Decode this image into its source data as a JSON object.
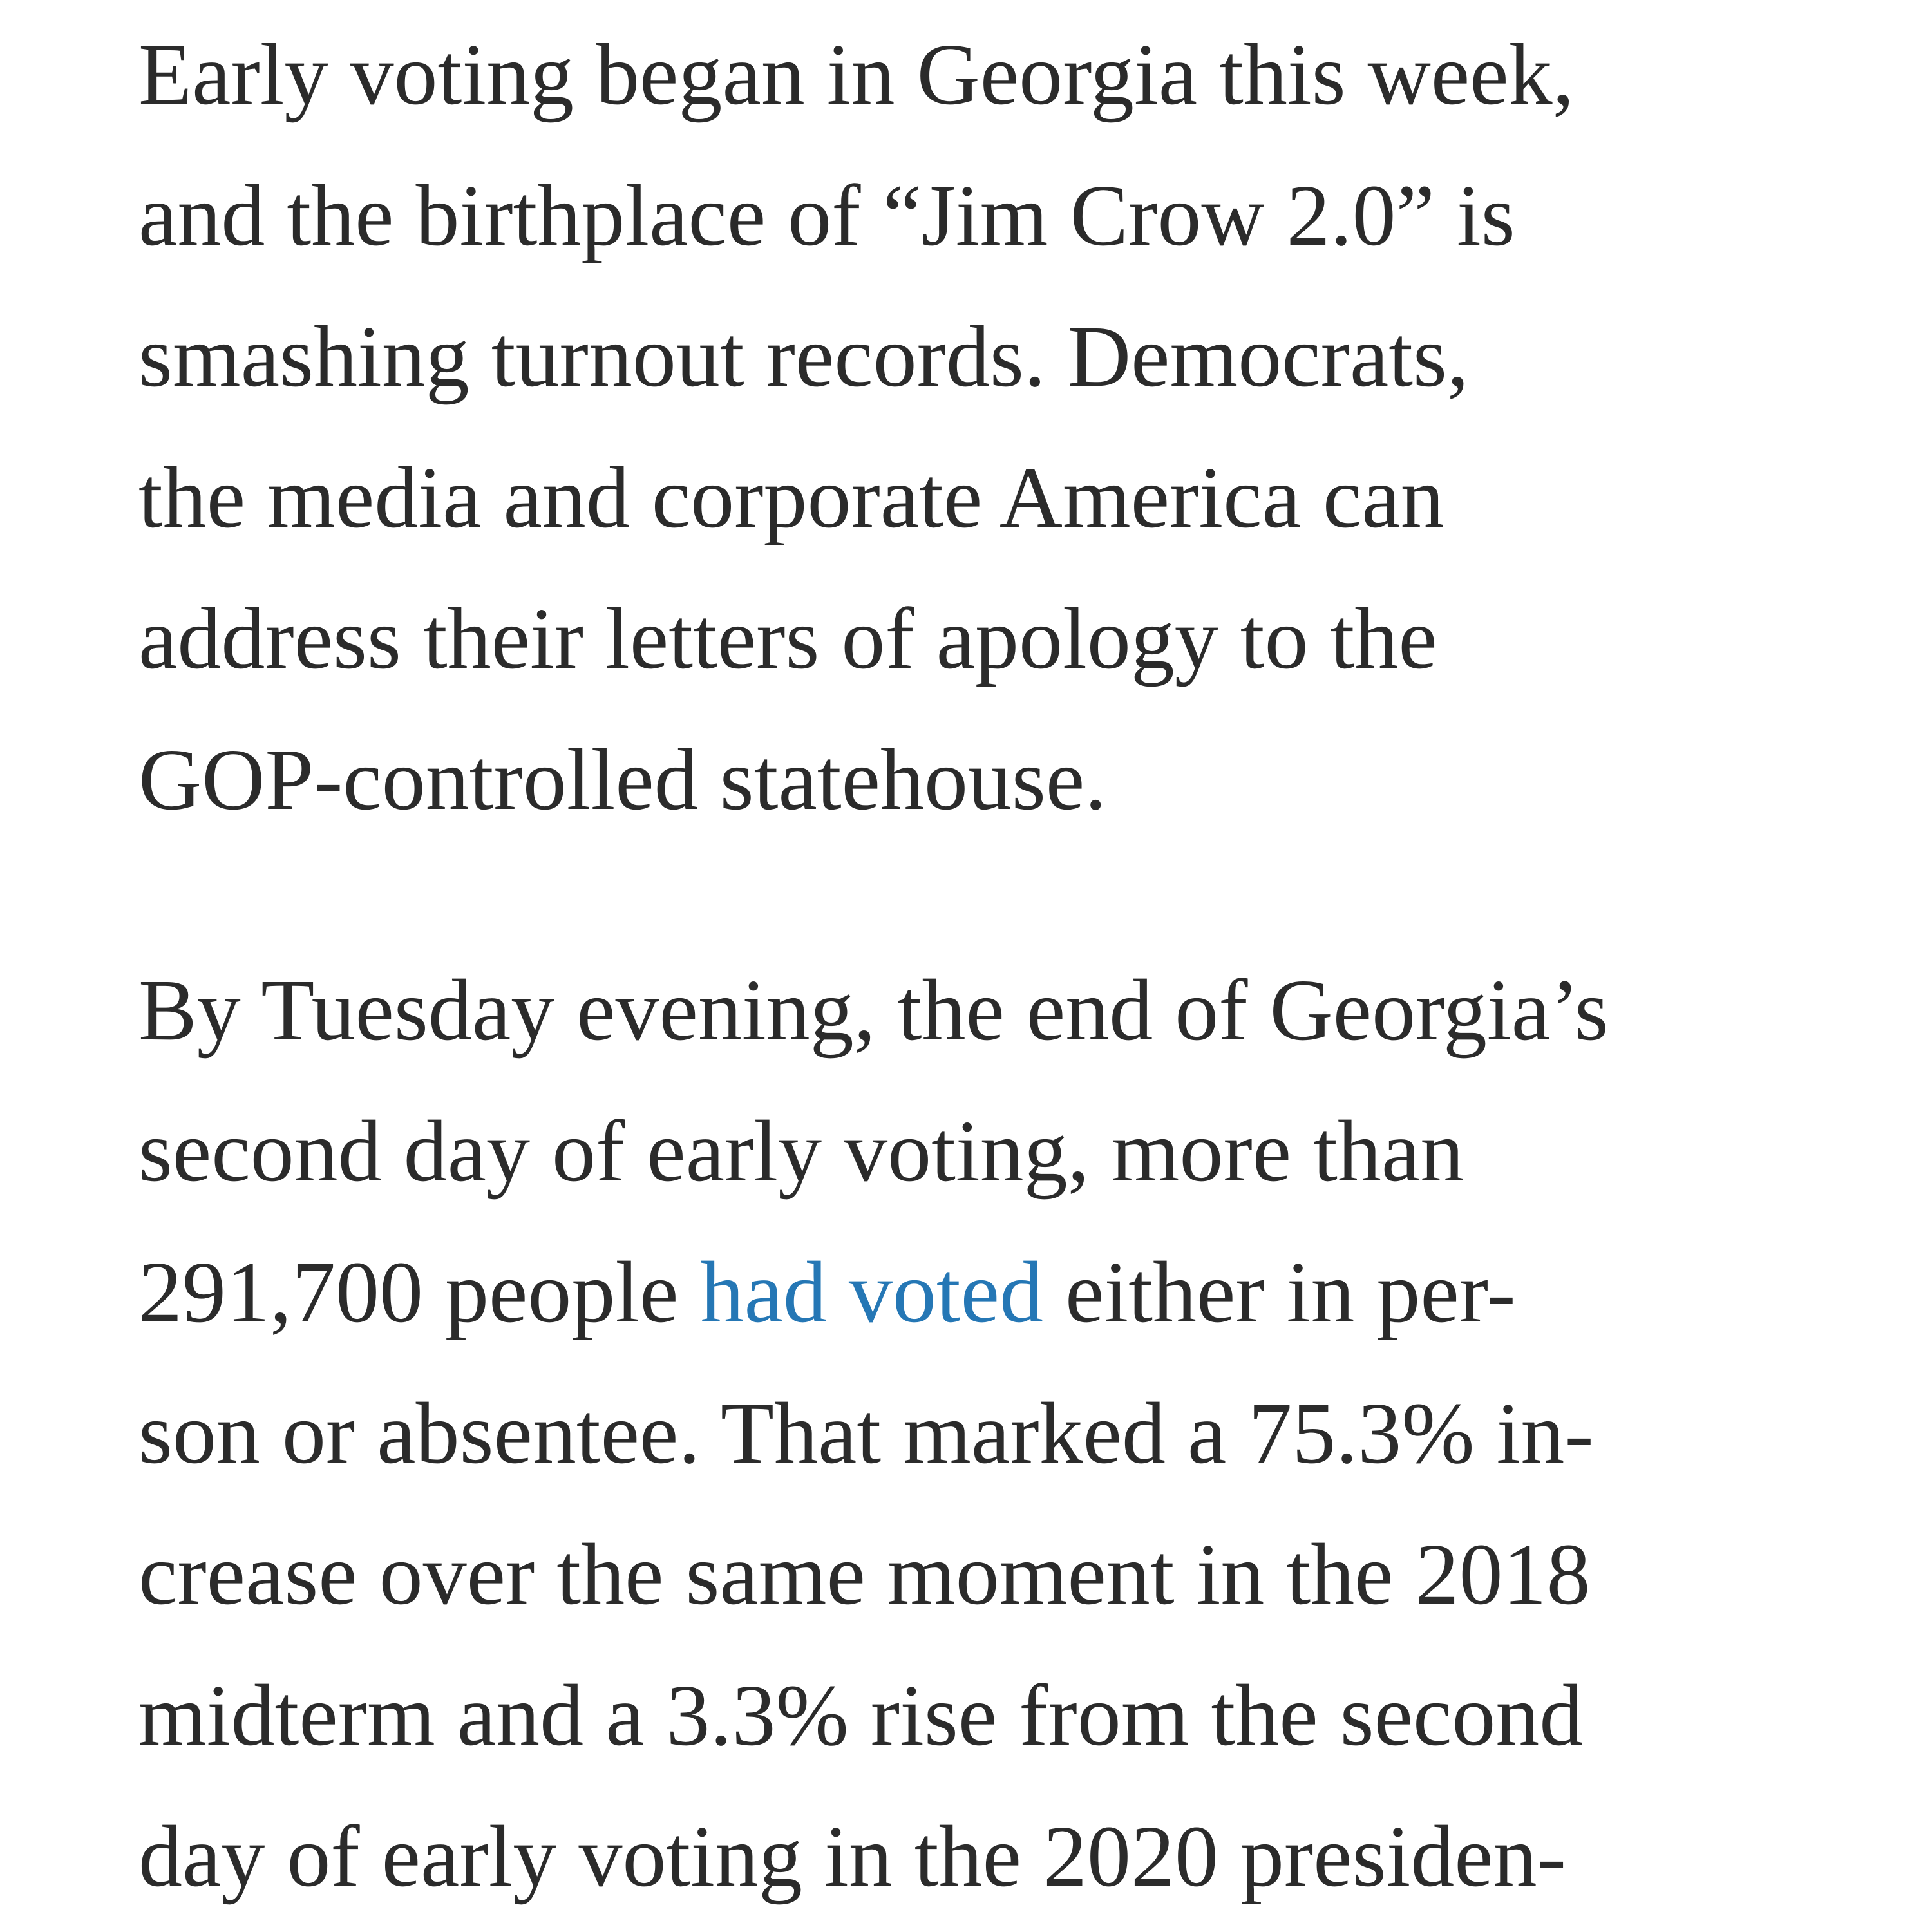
{
  "page": {
    "background": "#ffffff",
    "text_color": "#2b2b2b",
    "link_color": "#2577b5"
  },
  "article": {
    "paragraph1": {
      "lines": [
        "Early voting began in Georgia this week,",
        "and the birthplace of “Jim Crow 2.0” is",
        "smashing turnout records. Democrats,",
        "the media and corporate America can",
        "address their letters of apology to the",
        "GOP-controlled statehouse."
      ]
    },
    "paragraph2": {
      "line1": "By Tuesday evening, the end of Georgia’s",
      "line2": "second day of early voting, more than",
      "line3": {
        "before": "291,700 people ",
        "link": "had voted",
        "after": " either in per-"
      },
      "line4": "son or absentee. That marked a 75.3% in-",
      "line5": "crease over the same moment in the 2018",
      "line6": "midterm and a 3.3% rise from the second",
      "line7": "day of early voting in the 2020 presiden-"
    }
  }
}
